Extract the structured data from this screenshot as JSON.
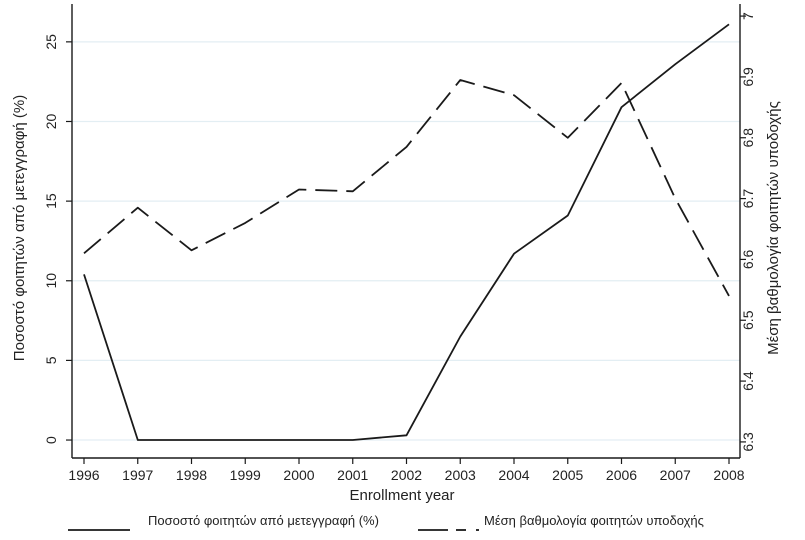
{
  "chart_data": {
    "type": "line",
    "x": [
      1996,
      1997,
      1998,
      1999,
      2000,
      2001,
      2002,
      2003,
      2004,
      2005,
      2006,
      2007,
      2008
    ],
    "xlabel": "Enrollment year",
    "series": [
      {
        "name": "Ποσοστό φοιτητών από μετεγγραφή (%)",
        "axis": "left",
        "style": "solid",
        "values": [
          10.4,
          0,
          0,
          0,
          0,
          0,
          0.3,
          6.5,
          11.7,
          14.1,
          20.9,
          23.6,
          26.1
        ]
      },
      {
        "name": "Μέση βαθμολογία φοιτητών υποδοχής",
        "axis": "right",
        "style": "dashed",
        "values": [
          6.61,
          6.685,
          6.615,
          6.66,
          6.715,
          6.712,
          6.785,
          6.895,
          6.87,
          6.8,
          6.89,
          6.7,
          6.54
        ]
      }
    ],
    "left_axis": {
      "label": "Ποσοστό φοιτητών από μετεγγραφή (%)",
      "ticks": [
        0,
        5,
        10,
        15,
        20,
        25
      ],
      "range": [
        -0.5,
        27
      ]
    },
    "right_axis": {
      "label": "Μέση βαθμολογία φοιτητών υποδοχής",
      "ticks": [
        6.3,
        6.4,
        6.5,
        6.6,
        6.7,
        6.8,
        6.9,
        7
      ],
      "range": [
        6.29,
        7.01
      ]
    },
    "grid": true,
    "legend_position": "bottom",
    "colors": {
      "line": "#1a1a1a",
      "grid": "#e3eef3",
      "axis": "#1a1a1a"
    }
  }
}
